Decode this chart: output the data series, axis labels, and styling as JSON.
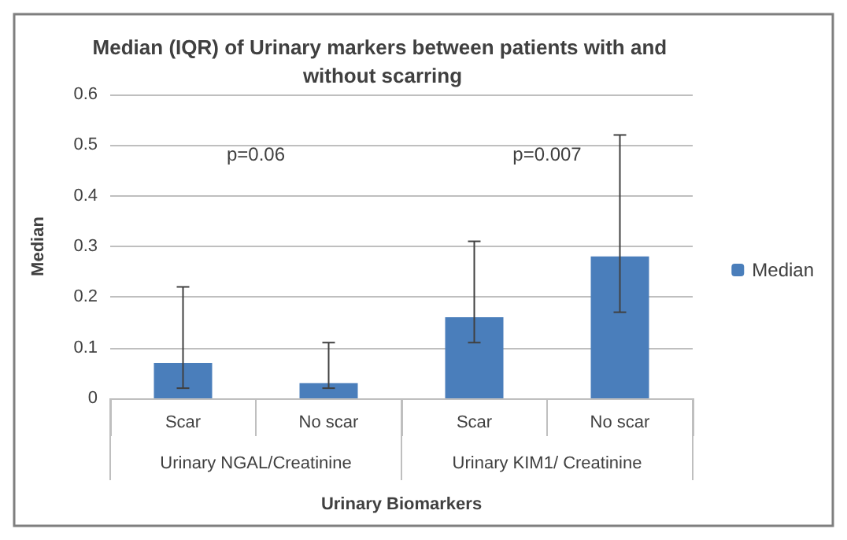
{
  "chart_data": {
    "type": "bar",
    "title": "Median (IQR) of Urinary markers between patients with and without scarring",
    "xlabel": "Urinary Biomarkers",
    "ylabel": "Median",
    "categories": [
      "Scar",
      "No scar",
      "Scar",
      "No scar"
    ],
    "series": [
      {
        "name": "Median",
        "color": "#4a7ebb",
        "values": [
          0.07,
          0.03,
          0.16,
          0.28
        ],
        "errors": [
          [
            0.02,
            0.22
          ],
          [
            0.02,
            0.11
          ],
          [
            0.11,
            0.31
          ],
          [
            0.17,
            0.52
          ]
        ]
      }
    ],
    "annotations": [
      "p=0.06",
      "p=0.007",
      "Urinary NGAL/Creatinine",
      "Urinary KIM1/ Creatinine"
    ],
    "ylim": [
      0,
      0.6
    ],
    "yticks": [
      0,
      0.1,
      0.2,
      0.3,
      0.4,
      0.5,
      0.6
    ],
    "grid": "y",
    "legend": "right"
  }
}
